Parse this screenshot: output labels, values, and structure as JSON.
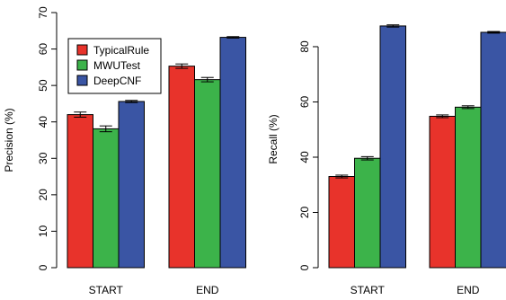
{
  "chart_data": [
    {
      "type": "bar",
      "ylabel": "Precision (%)",
      "categories": [
        "START",
        "END"
      ],
      "ylim": [
        0,
        70
      ],
      "yticks": [
        0,
        10,
        20,
        30,
        40,
        50,
        60,
        70
      ],
      "legend_position": "top-left",
      "series": [
        {
          "name": "TypicalRule",
          "color": "#e8332b",
          "values": [
            42.0,
            55.3
          ],
          "errors": [
            0.7,
            0.6
          ]
        },
        {
          "name": "MWUTest",
          "color": "#3cb34a",
          "values": [
            38.1,
            51.6
          ],
          "errors": [
            0.8,
            0.6
          ]
        },
        {
          "name": "DeepCNF",
          "color": "#3a55a4",
          "values": [
            45.6,
            63.2
          ],
          "errors": [
            0.3,
            0.2
          ]
        }
      ]
    },
    {
      "type": "bar",
      "ylabel": "Recall (%)",
      "categories": [
        "START",
        "END"
      ],
      "ylim": [
        0,
        93
      ],
      "yticks": [
        0,
        20,
        40,
        60,
        80
      ],
      "series": [
        {
          "name": "TypicalRule",
          "color": "#e8332b",
          "values": [
            33.0,
            54.8
          ],
          "errors": [
            0.5,
            0.5
          ]
        },
        {
          "name": "MWUTest",
          "color": "#3cb34a",
          "values": [
            39.6,
            58.1
          ],
          "errors": [
            0.6,
            0.5
          ]
        },
        {
          "name": "DeepCNF",
          "color": "#3a55a4",
          "values": [
            87.5,
            85.2
          ],
          "errors": [
            0.4,
            0.3
          ]
        }
      ]
    }
  ]
}
